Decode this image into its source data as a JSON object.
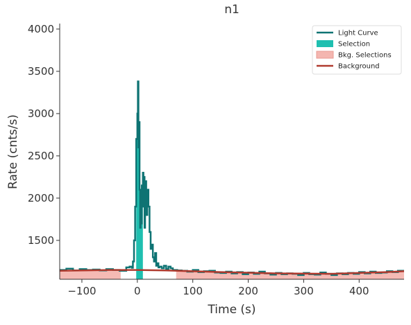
{
  "chart_data": {
    "type": "lightcurve",
    "title": "n1",
    "x_label": "Time (s)",
    "y_label": "Rate (cnts/s)",
    "xlim": [
      -140,
      481
    ],
    "ylim": [
      1040,
      4065
    ],
    "xticks": [
      {
        "value": -100,
        "label": "−100"
      },
      0,
      100,
      200,
      300,
      400
    ],
    "yticks": [
      1500,
      2000,
      2500,
      3000,
      3500,
      4000
    ],
    "legend": "upper right",
    "series": [
      {
        "name": "Light Curve",
        "color": "#0e7373",
        "x": [
          -140,
          -128,
          -116,
          -104,
          -92,
          -80,
          -68,
          -56,
          -44,
          -32,
          -20,
          -14,
          -10,
          -8,
          -6,
          -4,
          -2,
          0,
          1,
          2,
          3,
          4,
          5,
          6,
          7,
          8,
          9,
          10,
          11,
          12,
          13,
          14,
          15,
          16,
          18,
          20,
          22,
          24,
          26,
          28,
          30,
          32,
          34,
          36,
          38,
          40,
          44,
          48,
          52,
          56,
          60,
          64,
          72,
          80,
          90,
          100,
          110,
          120,
          130,
          140,
          150,
          160,
          170,
          180,
          190,
          200,
          210,
          220,
          230,
          240,
          250,
          260,
          270,
          280,
          290,
          300,
          310,
          320,
          330,
          340,
          350,
          360,
          370,
          380,
          390,
          400,
          410,
          420,
          430,
          440,
          450,
          460,
          470,
          481
        ],
        "values": [
          1150,
          1165,
          1145,
          1160,
          1150,
          1155,
          1145,
          1160,
          1150,
          1140,
          1180,
          1190,
          1175,
          1250,
          1500,
          1900,
          2700,
          3000,
          3380,
          2600,
          2900,
          2100,
          1650,
          2000,
          1700,
          2150,
          2050,
          2300,
          1900,
          2250,
          1650,
          2050,
          2200,
          1800,
          2100,
          1900,
          1600,
          1400,
          1450,
          1300,
          1250,
          1350,
          1200,
          1230,
          1180,
          1190,
          1170,
          1200,
          1160,
          1190,
          1170,
          1150,
          1145,
          1140,
          1130,
          1150,
          1125,
          1135,
          1140,
          1120,
          1115,
          1130,
          1110,
          1125,
          1100,
          1120,
          1105,
          1130,
          1110,
          1095,
          1115,
          1100,
          1110,
          1105,
          1090,
          1115,
          1100,
          1095,
          1120,
          1105,
          1090,
          1110,
          1100,
          1115,
          1105,
          1125,
          1110,
          1130,
          1115,
          1120,
          1135,
          1125,
          1140,
          1140
        ]
      },
      {
        "name": "Selection",
        "color": "#1fbfb0",
        "range": [
          -2,
          10
        ]
      },
      {
        "name": "Bkg. Selections",
        "color": "#f4b6b0",
        "ranges": [
          [
            -140,
            -30
          ],
          [
            70,
            481
          ]
        ]
      },
      {
        "name": "Background",
        "color": "#b03a2e",
        "x": [
          -140,
          -50,
          0,
          50,
          150,
          250,
          350,
          450,
          481
        ],
        "values": [
          1140,
          1150,
          1150,
          1145,
          1125,
          1110,
          1105,
          1125,
          1135
        ]
      }
    ]
  }
}
